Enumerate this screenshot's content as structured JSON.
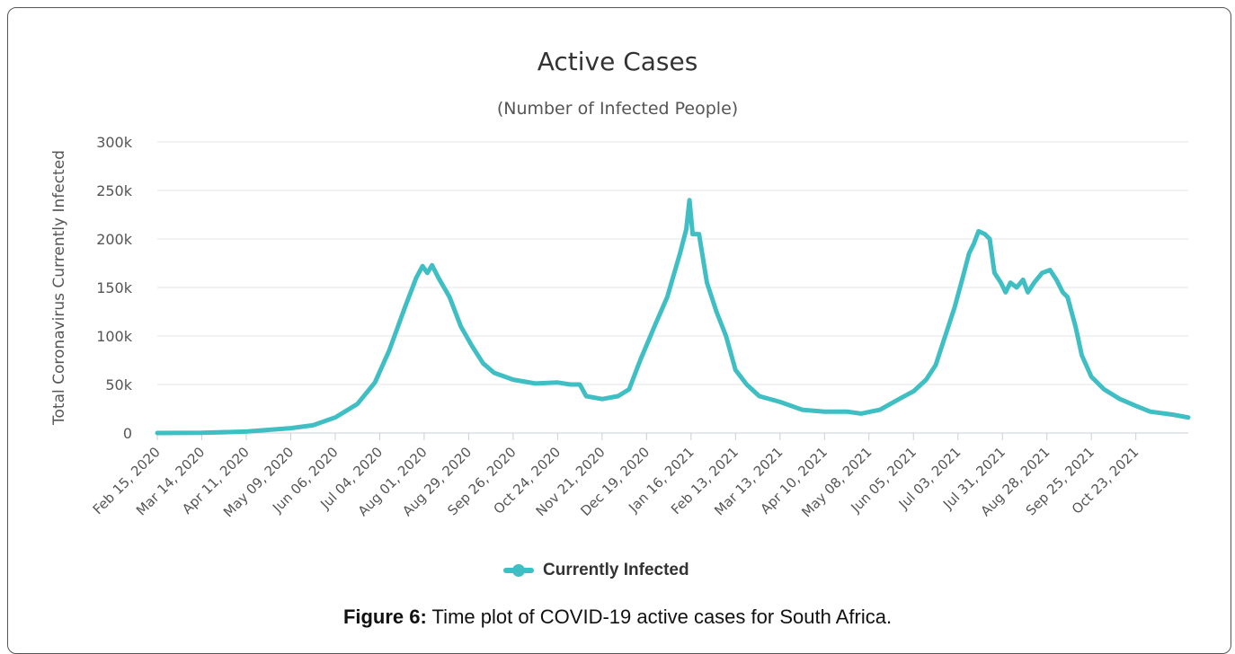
{
  "chart_data": {
    "type": "line",
    "title": "Active Cases",
    "subtitle": "(Number of Infected People)",
    "ylabel": "Total Coronavirus Currently Infected",
    "xlabel": "",
    "ylim": [
      0,
      300000
    ],
    "yticks": [
      0,
      50000,
      100000,
      150000,
      200000,
      250000,
      300000
    ],
    "ytick_labels": [
      "0",
      "50k",
      "100k",
      "150k",
      "200k",
      "250k",
      "300k"
    ],
    "x_range": [
      "2020-02-15",
      "2021-11-25"
    ],
    "xtick_labels": [
      "Feb 15, 2020",
      "Mar 14, 2020",
      "Apr 11, 2020",
      "May 09, 2020",
      "Jun 06, 2020",
      "Jul 04, 2020",
      "Aug 01, 2020",
      "Aug 29, 2020",
      "Sep 26, 2020",
      "Oct 24, 2020",
      "Nov 21, 2020",
      "Dec 19, 2020",
      "Jan 16, 2021",
      "Feb 13, 2021",
      "Mar 13, 2021",
      "Apr 10, 2021",
      "May 08, 2021",
      "Jun 05, 2021",
      "Jul 03, 2021",
      "Jul 31, 2021",
      "Aug 28, 2021",
      "Sep 25, 2021",
      "Oct 23, 2021"
    ],
    "grid": true,
    "legend_position": "bottom-center",
    "series": [
      {
        "name": "Currently Infected",
        "color": "#3fbfc4",
        "points": [
          [
            "2020-02-15",
            0
          ],
          [
            "2020-03-14",
            200
          ],
          [
            "2020-04-11",
            1500
          ],
          [
            "2020-05-09",
            5000
          ],
          [
            "2020-05-23",
            8000
          ],
          [
            "2020-06-06",
            16000
          ],
          [
            "2020-06-20",
            30000
          ],
          [
            "2020-07-01",
            52000
          ],
          [
            "2020-07-10",
            85000
          ],
          [
            "2020-07-20",
            130000
          ],
          [
            "2020-07-27",
            160000
          ],
          [
            "2020-07-31",
            172000
          ],
          [
            "2020-08-03",
            165000
          ],
          [
            "2020-08-06",
            173000
          ],
          [
            "2020-08-10",
            160000
          ],
          [
            "2020-08-17",
            140000
          ],
          [
            "2020-08-24",
            110000
          ],
          [
            "2020-08-31",
            90000
          ],
          [
            "2020-09-07",
            72000
          ],
          [
            "2020-09-14",
            62000
          ],
          [
            "2020-09-26",
            55000
          ],
          [
            "2020-10-10",
            51000
          ],
          [
            "2020-10-24",
            52000
          ],
          [
            "2020-11-01",
            50000
          ],
          [
            "2020-11-07",
            50000
          ],
          [
            "2020-11-11",
            38000
          ],
          [
            "2020-11-21",
            35000
          ],
          [
            "2020-12-01",
            38000
          ],
          [
            "2020-12-08",
            45000
          ],
          [
            "2020-12-15",
            75000
          ],
          [
            "2020-12-24",
            110000
          ],
          [
            "2021-01-01",
            140000
          ],
          [
            "2021-01-09",
            185000
          ],
          [
            "2021-01-13",
            210000
          ],
          [
            "2021-01-15",
            240000
          ],
          [
            "2021-01-17",
            205000
          ],
          [
            "2021-01-21",
            205000
          ],
          [
            "2021-01-26",
            155000
          ],
          [
            "2021-02-01",
            125000
          ],
          [
            "2021-02-07",
            100000
          ],
          [
            "2021-02-13",
            65000
          ],
          [
            "2021-02-20",
            50000
          ],
          [
            "2021-02-28",
            38000
          ],
          [
            "2021-03-13",
            32000
          ],
          [
            "2021-03-27",
            24000
          ],
          [
            "2021-04-10",
            22000
          ],
          [
            "2021-04-24",
            22000
          ],
          [
            "2021-05-03",
            20000
          ],
          [
            "2021-05-15",
            24000
          ],
          [
            "2021-05-27",
            35000
          ],
          [
            "2021-06-05",
            43000
          ],
          [
            "2021-06-13",
            55000
          ],
          [
            "2021-06-19",
            70000
          ],
          [
            "2021-06-25",
            100000
          ],
          [
            "2021-07-01",
            130000
          ],
          [
            "2021-07-06",
            160000
          ],
          [
            "2021-07-10",
            185000
          ],
          [
            "2021-07-13",
            195000
          ],
          [
            "2021-07-16",
            208000
          ],
          [
            "2021-07-20",
            205000
          ],
          [
            "2021-07-23",
            200000
          ],
          [
            "2021-07-26",
            165000
          ],
          [
            "2021-07-30",
            155000
          ],
          [
            "2021-08-02",
            145000
          ],
          [
            "2021-08-05",
            155000
          ],
          [
            "2021-08-09",
            150000
          ],
          [
            "2021-08-13",
            158000
          ],
          [
            "2021-08-16",
            145000
          ],
          [
            "2021-08-20",
            155000
          ],
          [
            "2021-08-25",
            165000
          ],
          [
            "2021-08-30",
            168000
          ],
          [
            "2021-09-03",
            158000
          ],
          [
            "2021-09-07",
            145000
          ],
          [
            "2021-09-10",
            140000
          ],
          [
            "2021-09-15",
            110000
          ],
          [
            "2021-09-19",
            80000
          ],
          [
            "2021-09-25",
            58000
          ],
          [
            "2021-10-03",
            45000
          ],
          [
            "2021-10-13",
            35000
          ],
          [
            "2021-10-23",
            28000
          ],
          [
            "2021-11-01",
            22000
          ],
          [
            "2021-11-15",
            19000
          ],
          [
            "2021-11-25",
            16000
          ]
        ]
      }
    ]
  },
  "caption": {
    "label": "Figure 6:",
    "text": " Time plot of COVID-19 active cases for South Africa."
  }
}
